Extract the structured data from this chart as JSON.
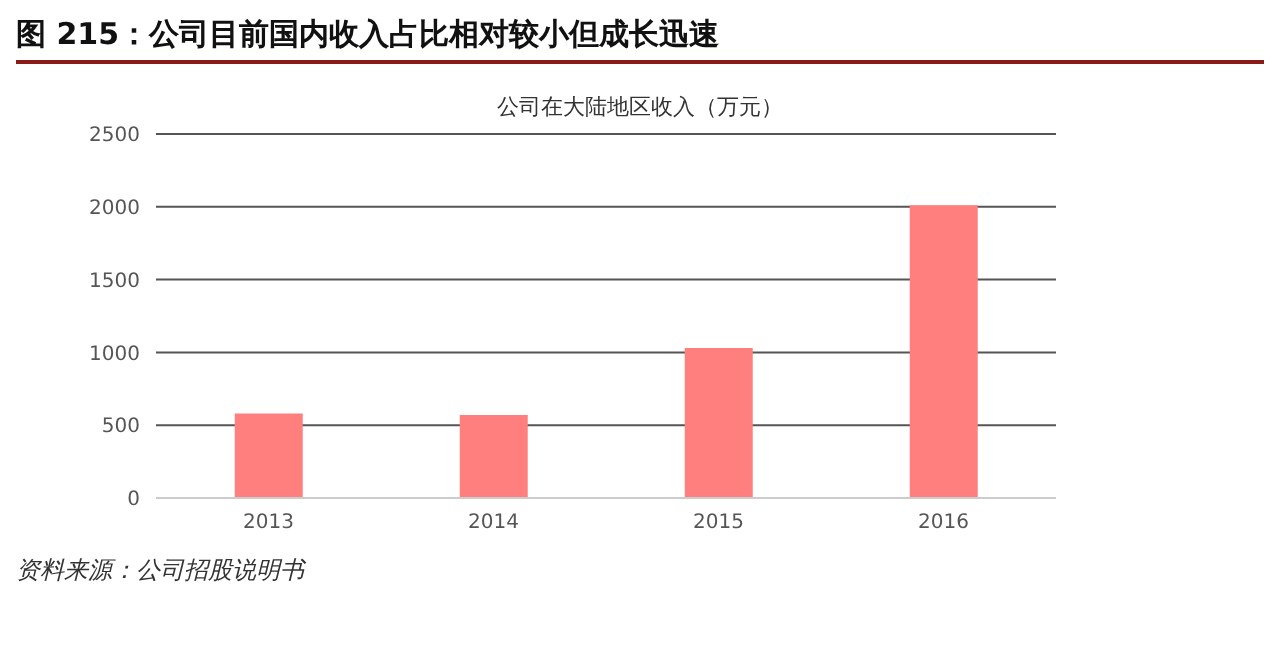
{
  "chart_data": {
    "type": "bar",
    "title": "图 215：公司目前国内收入占比相对较小但成长迅速",
    "subtitle": "公司在大陆地区收入（万元）",
    "categories": [
      "2013",
      "2014",
      "2015",
      "2016"
    ],
    "values": [
      580,
      570,
      1030,
      2010
    ],
    "color": "#ff7f7f",
    "ylim": [
      0,
      2500
    ],
    "yticks": [
      0,
      500,
      1000,
      1500,
      2000,
      2500
    ],
    "grid": "y",
    "annotations": [
      "资料来源：公司招股说明书"
    ]
  }
}
